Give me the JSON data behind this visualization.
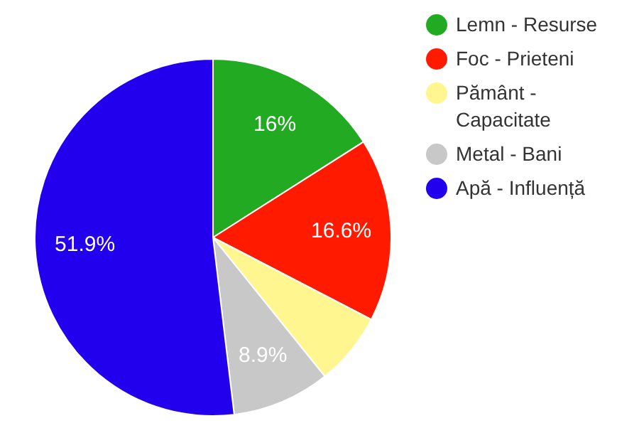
{
  "chart_data": {
    "type": "pie",
    "categories": [
      "Lemn - Resurse",
      "Foc - Prieteni",
      "Pământ - Capacitate",
      "Metal - Bani",
      "Apă - Influență"
    ],
    "values": [
      16,
      16.6,
      6.6,
      8.9,
      51.9
    ],
    "colors": [
      "#22aa22",
      "#ff1a00",
      "#fff68f",
      "#c8c8c8",
      "#2200ee"
    ],
    "value_labels": [
      "16%",
      "16.6%",
      null,
      "8.9%",
      "51.9%"
    ],
    "legend": "top right"
  }
}
